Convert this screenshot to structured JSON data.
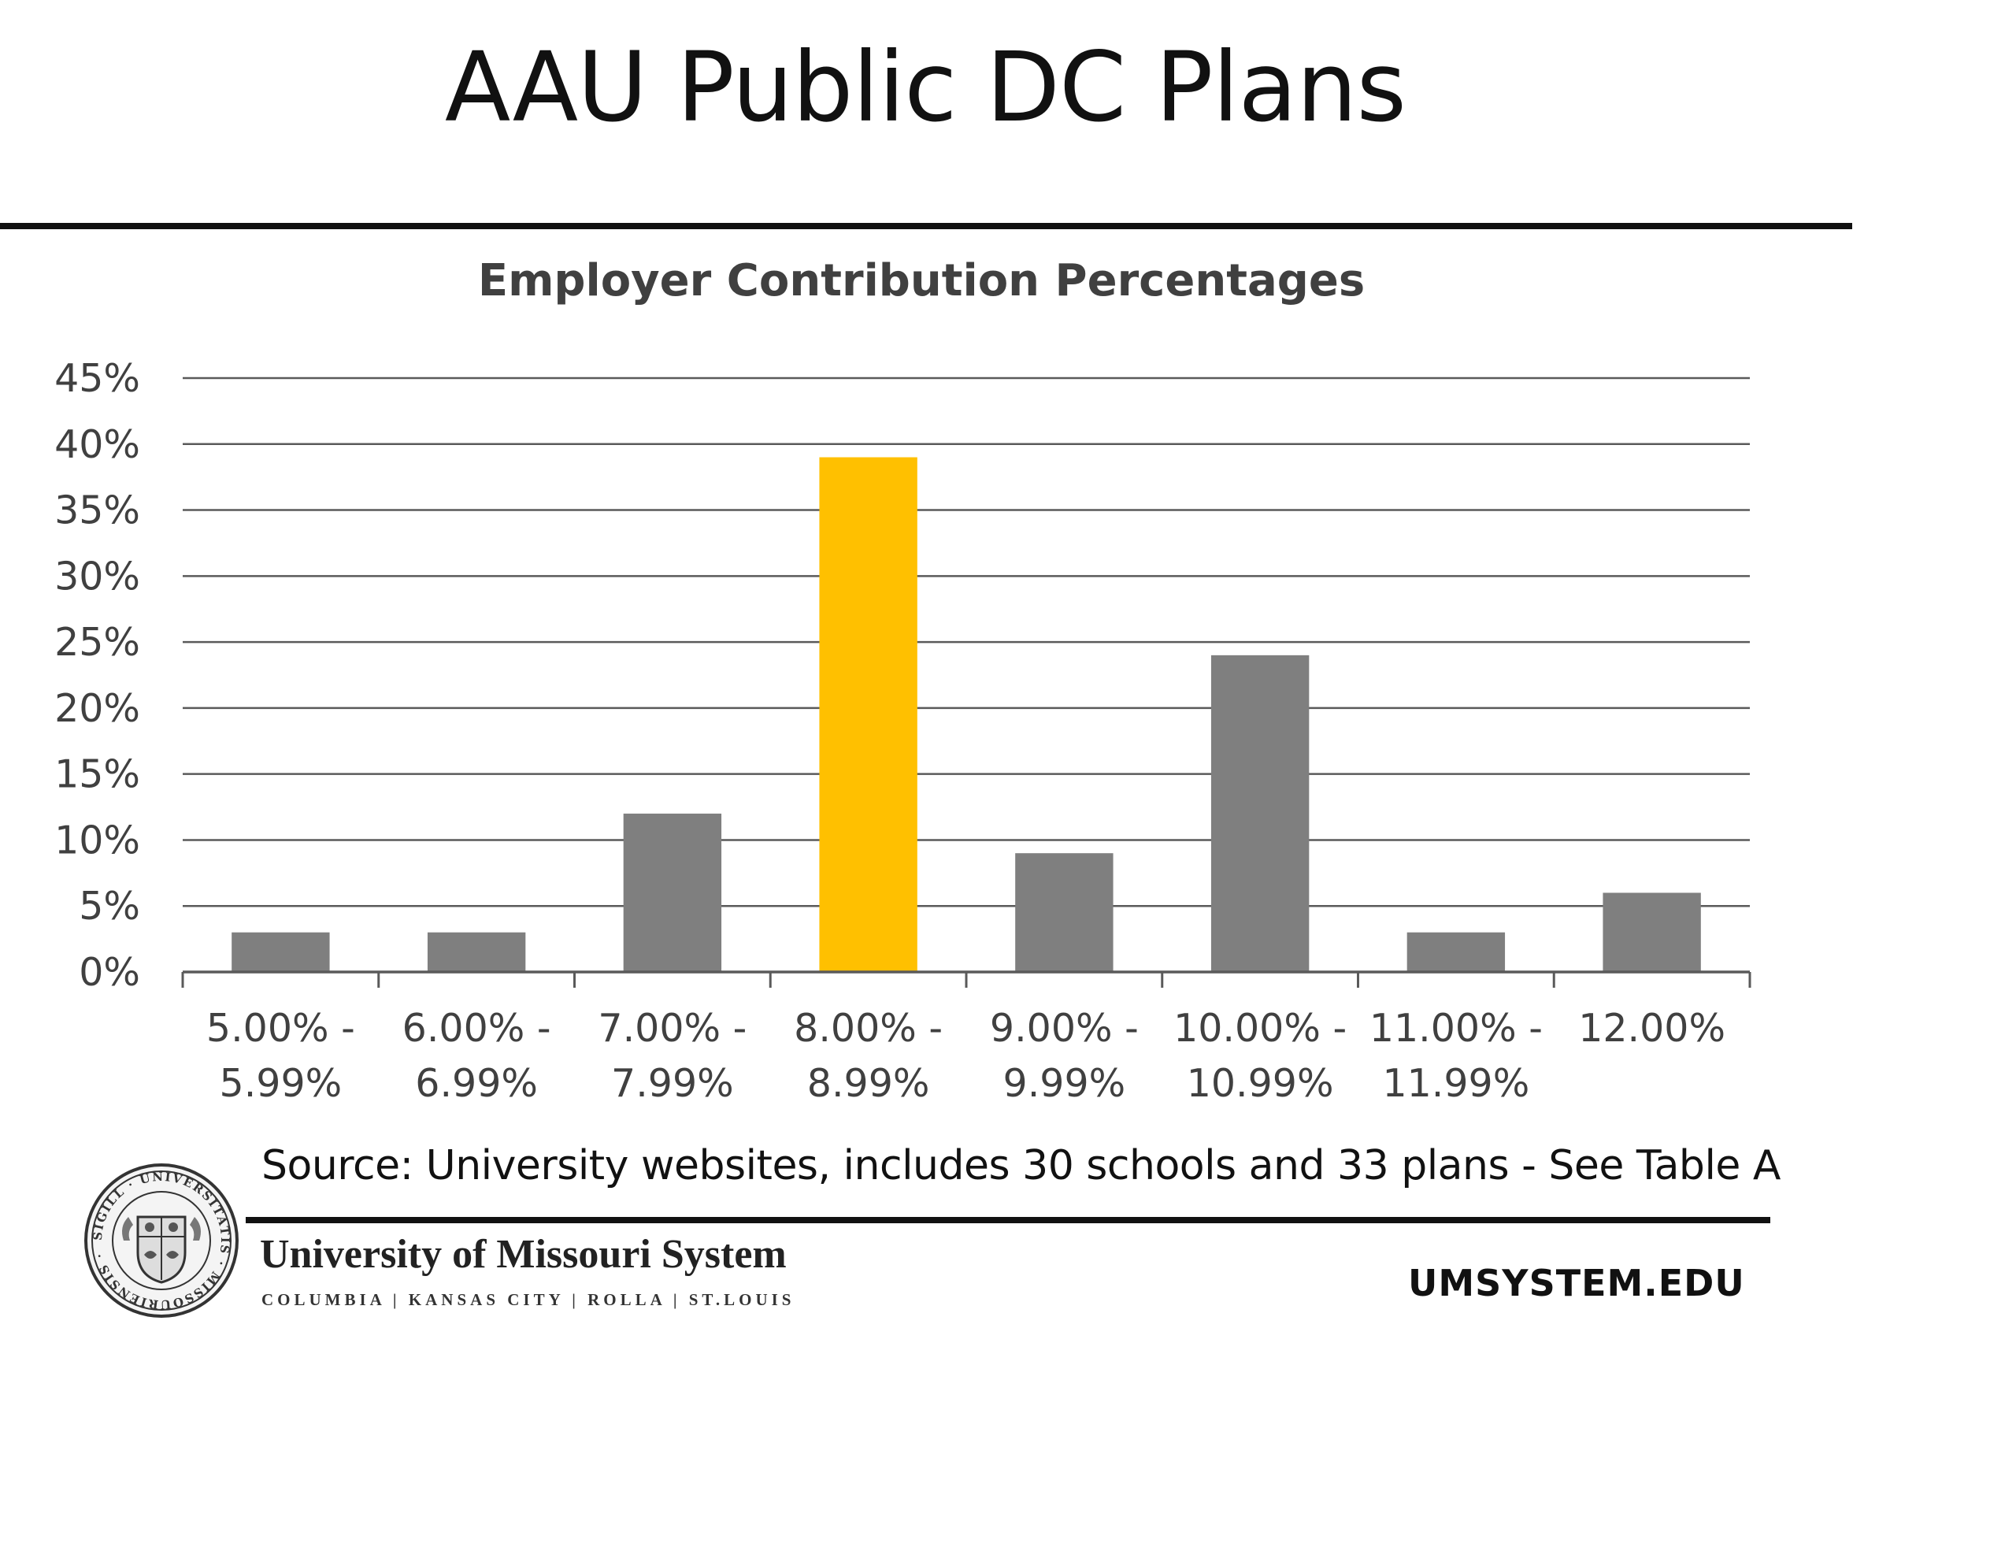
{
  "page_title": "AAU Public DC Plans",
  "source_note": "Source: University websites, includes 30 schools and 33 plans - See Table A",
  "footer": {
    "org_name": "University of Missouri System",
    "campuses": "COLUMBIA | KANSAS CITY | ROLLA | ST.LOUIS",
    "url": "UMSYSTEM.EDU",
    "seal_text": "SIGILL · UNIVERSITATIS · MISSOURIENSIS · MDCCCXXXIX"
  },
  "colors": {
    "bar": "#7f7f7f",
    "highlight_bar": "#ffc000",
    "gridline": "#5a5a5a",
    "axis_text": "#404040"
  },
  "chart_data": {
    "type": "bar",
    "title": "Employer Contribution Percentages",
    "categories": [
      [
        "5.00% -",
        "5.99%"
      ],
      [
        "6.00% -",
        "6.99%"
      ],
      [
        "7.00% -",
        "7.99%"
      ],
      [
        "8.00% -",
        "8.99%"
      ],
      [
        "9.00% -",
        "9.99%"
      ],
      [
        "10.00% -",
        "10.99%"
      ],
      [
        "11.00% -",
        "11.99%"
      ],
      [
        "12.00%"
      ]
    ],
    "values": [
      3,
      3,
      12,
      39,
      9,
      24,
      3,
      6
    ],
    "highlight_index": 3,
    "ylim": [
      0,
      45
    ],
    "yticks": [
      0,
      5,
      10,
      15,
      20,
      25,
      30,
      35,
      40,
      45
    ],
    "ytick_format": "%",
    "grid": true,
    "legend": "none"
  }
}
